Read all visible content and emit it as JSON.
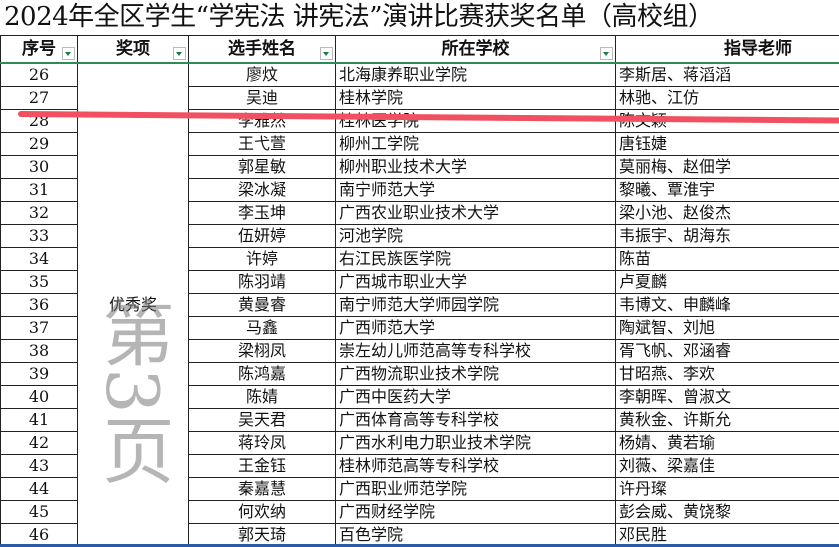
{
  "title": "2024年全区学生“学宪法 讲宪法”演讲比赛获奖名单（高校组）",
  "headers": [
    "序号",
    "奖项",
    "选手姓名",
    "所在学校",
    "指导老师"
  ],
  "award": "优秀奖",
  "watermark": "第3页",
  "rows": [
    [
      "26",
      "廖炆",
      "北海康养职业学院",
      "李斯居、蒋滔滔"
    ],
    [
      "27",
      "吴迪",
      "桂林学院",
      "林驰、江仿"
    ],
    [
      "28",
      "李雅然",
      "桂林医学院",
      "陈文颖"
    ],
    [
      "29",
      "王弋萱",
      "柳州工学院",
      "唐钰婕"
    ],
    [
      "30",
      "郭星敏",
      "柳州职业技术大学",
      "莫丽梅、赵佃学"
    ],
    [
      "31",
      "梁冰凝",
      "南宁师范大学",
      "黎曦、覃淮宇"
    ],
    [
      "32",
      "李玉坤",
      "广西农业职业技术大学",
      "梁小池、赵俊杰"
    ],
    [
      "33",
      "伍妍婷",
      "河池学院",
      "韦振宇、胡海东"
    ],
    [
      "34",
      "许婷",
      "右江民族医学院",
      "陈苗"
    ],
    [
      "35",
      "陈羽靖",
      "广西城市职业大学",
      "卢夏麟"
    ],
    [
      "36",
      "黄曼睿",
      "南宁师范大学师园学院",
      "韦博文、申麟峰"
    ],
    [
      "37",
      "马鑫",
      "广西师范大学",
      "陶斌智、刘旭"
    ],
    [
      "38",
      "梁栩凤",
      "崇左幼儿师范高等专科学校",
      "胥飞帆、邓涵睿"
    ],
    [
      "39",
      "陈鸿嘉",
      "广西物流职业技术学院",
      "甘昭燕、李欢"
    ],
    [
      "40",
      "陈婧",
      "广西中医药大学",
      "李朝晖、曾淑文"
    ],
    [
      "41",
      "吴天君",
      "广西体育高等专科学校",
      "黄秋金、许斯允"
    ],
    [
      "42",
      "蒋玲凤",
      "广西水利电力职业技术学院",
      "杨婧、黄若瑜"
    ],
    [
      "43",
      "王金钰",
      "桂林师范高等专科学校",
      "刘薇、梁嘉佳"
    ],
    [
      "44",
      "秦嘉慧",
      "广西职业师范学院",
      "许丹璨"
    ],
    [
      "45",
      "何欢纳",
      "广西财经学院",
      "彭会威、黄饶黎"
    ],
    [
      "46",
      "郭天琦",
      "百色学院",
      "邓民胜"
    ]
  ],
  "colors": {
    "filter_arrow": "#1e7a45",
    "header_underline": "#2e8b57",
    "annotation_line": "#f0505f"
  }
}
